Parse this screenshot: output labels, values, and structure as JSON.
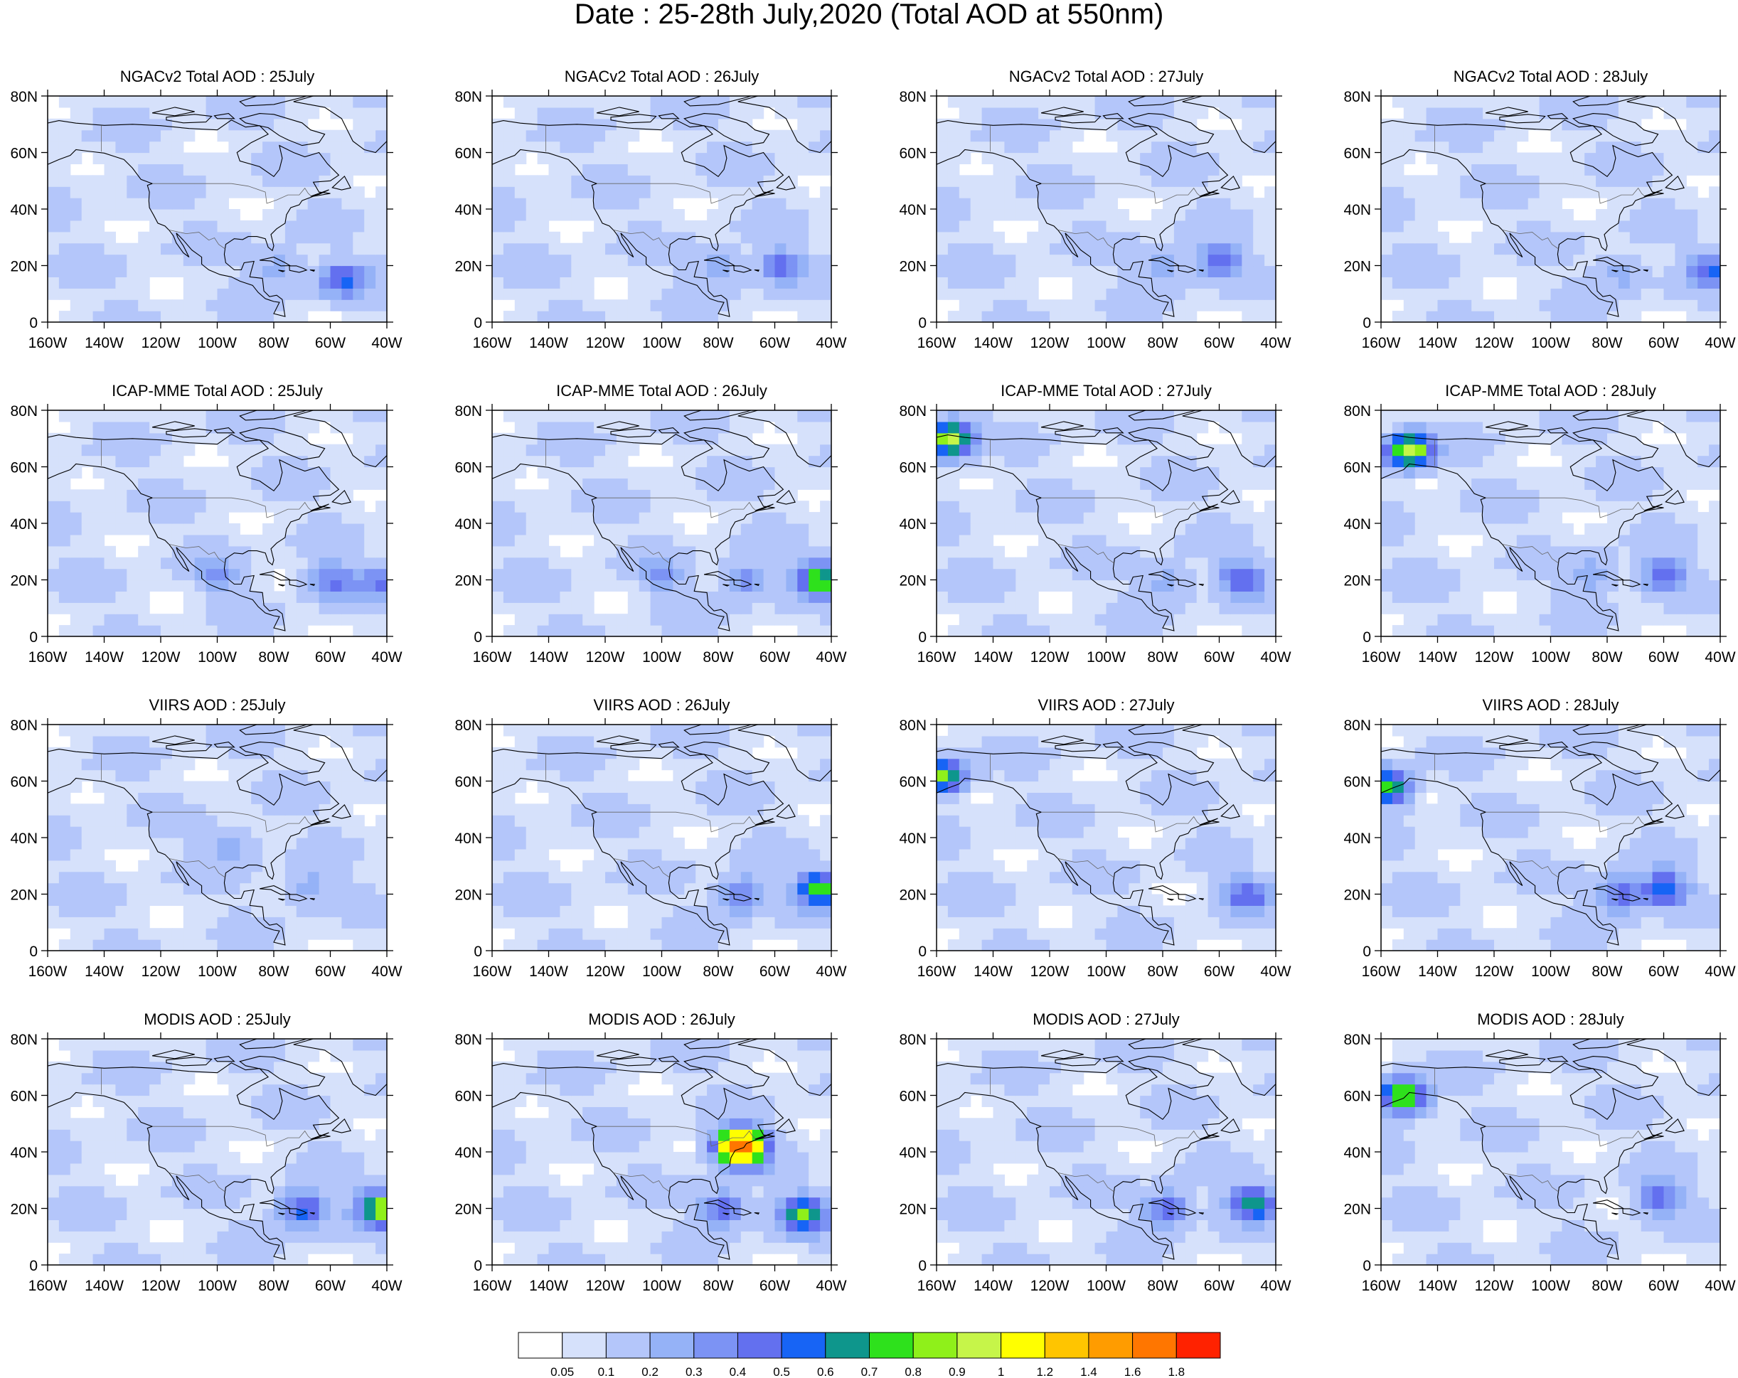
{
  "title": "Date : 25-28th July,2020 (Total AOD at 550nm)",
  "chart_data": {
    "type": "heatmap",
    "title": "Date : 25-28th July,2020 (Total AOD at 550nm)",
    "variable": "Total AOD at 550nm",
    "x_tick_labels": [
      "160W",
      "140W",
      "120W",
      "100W",
      "80W",
      "60W",
      "40W"
    ],
    "y_tick_labels": [
      "0",
      "20N",
      "40N",
      "60N",
      "80N"
    ],
    "xlim": [
      -160,
      -40
    ],
    "ylim": [
      0,
      80
    ],
    "grid": false,
    "colorbar": {
      "orientation": "horizontal",
      "placement": "bottom",
      "levels": [
        "0.05",
        "0.1",
        "0.2",
        "0.3",
        "0.4",
        "0.5",
        "0.6",
        "0.7",
        "0.8",
        "0.9",
        "1",
        "1.2",
        "1.4",
        "1.6",
        "1.8"
      ],
      "colors": [
        "#ffffff",
        "#d6e1fb",
        "#b4c6fa",
        "#95b2f7",
        "#7c93f4",
        "#6370ef",
        "#1764f5",
        "#0e968c",
        "#2ee11c",
        "#8ff01a",
        "#c6f549",
        "#ffff00",
        "#ffc500",
        "#ff9c00",
        "#ff7600",
        "#ff2200"
      ]
    },
    "panels": [
      {
        "title": "NGACv2 Total AOD : 25July",
        "product": "NGACv2",
        "day": "25July",
        "hotspots": [
          {
            "lon": -56,
            "lat": 15,
            "aod": 0.5
          },
          {
            "lon": -78,
            "lat": 20,
            "aod": 0.3
          }
        ]
      },
      {
        "title": "NGACv2 Total AOD : 26July",
        "product": "NGACv2",
        "day": "26July",
        "hotspots": [
          {
            "lon": -58,
            "lat": 20,
            "aod": 0.45
          },
          {
            "lon": -80,
            "lat": 20,
            "aod": 0.3
          }
        ]
      },
      {
        "title": "NGACv2 Total AOD : 27July",
        "product": "NGACv2",
        "day": "27July",
        "hotspots": [
          {
            "lon": -60,
            "lat": 22,
            "aod": 0.45
          },
          {
            "lon": -80,
            "lat": 20,
            "aod": 0.3
          }
        ]
      },
      {
        "title": "NGACv2 Total AOD : 28July",
        "product": "NGACv2",
        "day": "28July",
        "hotspots": [
          {
            "lon": -43,
            "lat": 18,
            "aod": 0.5
          },
          {
            "lon": -75,
            "lat": 18,
            "aod": 0.3
          }
        ]
      },
      {
        "title": "ICAP-MME Total AOD : 25July",
        "product": "ICAP-MME",
        "day": "25July",
        "hotspots": [
          {
            "lon": -60,
            "lat": 20,
            "aod": 0.45
          },
          {
            "lon": -42,
            "lat": 20,
            "aod": 0.4
          },
          {
            "lon": -100,
            "lat": 22,
            "aod": 0.3
          }
        ]
      },
      {
        "title": "ICAP-MME Total AOD : 26July",
        "product": "ICAP-MME",
        "day": "26July",
        "hotspots": [
          {
            "lon": -44,
            "lat": 20,
            "aod": 0.8
          },
          {
            "lon": -70,
            "lat": 20,
            "aod": 0.4
          },
          {
            "lon": -100,
            "lat": 22,
            "aod": 0.3
          }
        ]
      },
      {
        "title": "ICAP-MME Total AOD : 27July",
        "product": "ICAP-MME",
        "day": "27July",
        "hotspots": [
          {
            "lon": -155,
            "lat": 70,
            "aod": 1.0
          },
          {
            "lon": -52,
            "lat": 21,
            "aod": 0.5
          },
          {
            "lon": -78,
            "lat": 20,
            "aod": 0.3
          }
        ]
      },
      {
        "title": "ICAP-MME Total AOD : 28July",
        "product": "ICAP-MME",
        "day": "28July",
        "hotspots": [
          {
            "lon": -150,
            "lat": 66,
            "aod": 1.0
          },
          {
            "lon": -60,
            "lat": 22,
            "aod": 0.5
          },
          {
            "lon": -85,
            "lat": 22,
            "aod": 0.3
          }
        ]
      },
      {
        "title": "VIIRS AOD : 25July",
        "product": "VIIRS",
        "day": "25July",
        "hotspots": [
          {
            "lon": -68,
            "lat": 22,
            "aod": 0.3
          },
          {
            "lon": -95,
            "lat": 38,
            "aod": 0.3
          }
        ]
      },
      {
        "title": "VIIRS AOD : 26July",
        "product": "VIIRS",
        "day": "26July",
        "hotspots": [
          {
            "lon": -44,
            "lat": 22,
            "aod": 0.8
          },
          {
            "lon": -72,
            "lat": 20,
            "aod": 0.5
          }
        ]
      },
      {
        "title": "VIIRS AOD : 27July",
        "product": "VIIRS",
        "day": "27July",
        "hotspots": [
          {
            "lon": -50,
            "lat": 20,
            "aod": 0.5
          },
          {
            "lon": -158,
            "lat": 62,
            "aod": 0.8
          }
        ]
      },
      {
        "title": "VIIRS AOD : 28July",
        "product": "VIIRS",
        "day": "28July",
        "hotspots": [
          {
            "lon": -158,
            "lat": 58,
            "aod": 0.8
          },
          {
            "lon": -60,
            "lat": 22,
            "aod": 0.6
          },
          {
            "lon": -76,
            "lat": 20,
            "aod": 0.5
          }
        ]
      },
      {
        "title": "MODIS AOD : 25July",
        "product": "MODIS",
        "day": "25July",
        "hotspots": [
          {
            "lon": -42,
            "lat": 20,
            "aod": 0.9
          },
          {
            "lon": -70,
            "lat": 20,
            "aod": 0.6
          }
        ]
      },
      {
        "title": "MODIS AOD : 26July",
        "product": "MODIS",
        "day": "26July",
        "hotspots": [
          {
            "lon": -50,
            "lat": 18,
            "aod": 0.8
          },
          {
            "lon": -78,
            "lat": 20,
            "aod": 0.5
          },
          {
            "lon": -72,
            "lat": 42,
            "aod": 1.8
          }
        ]
      },
      {
        "title": "MODIS AOD : 27July",
        "product": "MODIS",
        "day": "27July",
        "hotspots": [
          {
            "lon": -48,
            "lat": 22,
            "aod": 0.7
          },
          {
            "lon": -78,
            "lat": 20,
            "aod": 0.5
          }
        ]
      },
      {
        "title": "MODIS AOD : 28July",
        "product": "MODIS",
        "day": "28July",
        "hotspots": [
          {
            "lon": -152,
            "lat": 60,
            "aod": 0.9
          },
          {
            "lon": -62,
            "lat": 24,
            "aod": 0.5
          }
        ]
      }
    ]
  }
}
